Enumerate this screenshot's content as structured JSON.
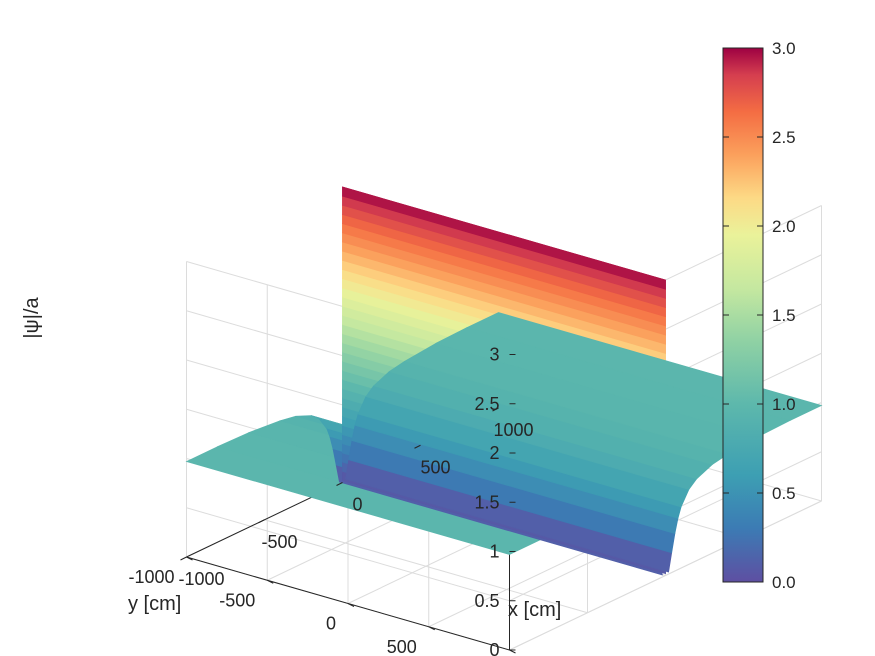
{
  "chart_data": {
    "type": "surface",
    "title": "",
    "xlabel": "x [cm]",
    "ylabel": "y [cm]",
    "zlabel": "|ψ|/a",
    "xlim": [
      -1000,
      1000
    ],
    "ylim": [
      -1000,
      1000
    ],
    "zlim": [
      0,
      3
    ],
    "grid": true,
    "colormap": "spectral",
    "x_ticks": [
      "-1000",
      "-500",
      "0",
      "500",
      "1000"
    ],
    "y_ticks": [
      "-1000",
      "-500",
      "0",
      "500",
      "1000"
    ],
    "z_ticks": [
      "0",
      "0.5",
      "1",
      "1.5",
      "2",
      "2.5",
      "3"
    ],
    "colorbar": {
      "ticks": [
        "0.0",
        "0.5",
        "1.0",
        "1.5",
        "2.0",
        "2.5",
        "3.0"
      ],
      "range": [
        0,
        3
      ],
      "position": "right"
    },
    "profile_along_x": {
      "x": [
        -1000,
        -800,
        -600,
        -400,
        -300,
        -200,
        -150,
        -100,
        -80,
        -60,
        -40,
        -20,
        0,
        20,
        40,
        60,
        80,
        100,
        150,
        200,
        300,
        400,
        600,
        800,
        1000
      ],
      "z": [
        0.97,
        0.97,
        0.96,
        0.93,
        0.9,
        0.83,
        0.76,
        0.62,
        0.52,
        0.38,
        0.2,
        0.02,
        3.0,
        0.02,
        0.2,
        0.38,
        0.52,
        0.62,
        0.76,
        0.83,
        0.9,
        0.93,
        0.96,
        0.97,
        0.97
      ]
    }
  }
}
